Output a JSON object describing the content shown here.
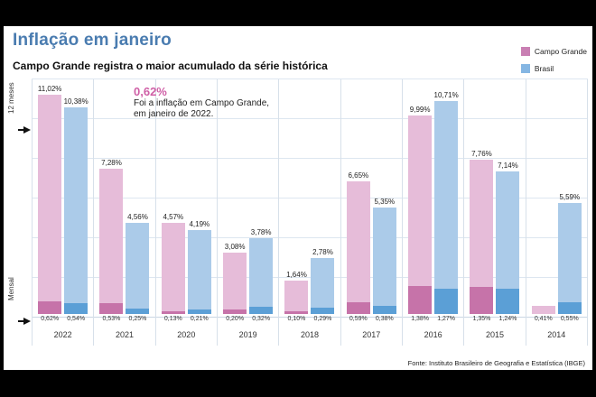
{
  "title": "Inflação em janeiro",
  "subtitle": "Campo Grande registra o maior acumulado da série histórica",
  "annotation": {
    "value": "0,62%",
    "line1": "Foi a inflação em Campo Grande,",
    "line2": "em janeiro de 2022.",
    "color": "#cf5fa6"
  },
  "axis": {
    "twelve_months_label": "12 meses",
    "monthly_label": "Mensal"
  },
  "footer": "Fonte: Instituto Brasileiro de Geografia e Estatística (IBGE)",
  "colors": {
    "title": "#4a7cb0",
    "grid": "#dde6f0"
  },
  "chart_data": {
    "type": "bar",
    "title": "Inflação em janeiro",
    "subtitle": "Campo Grande registra o maior acumulado da série histórica",
    "categories": [
      "2022",
      "2021",
      "2020",
      "2019",
      "2018",
      "2017",
      "2016",
      "2015",
      "2014"
    ],
    "legend_position": "top-right",
    "grid": true,
    "ylim": [
      0,
      11.8
    ],
    "units": "%",
    "series": [
      {
        "name": "Campo Grande",
        "annual_12m": [
          11.02,
          7.28,
          4.57,
          3.08,
          1.64,
          6.65,
          9.99,
          7.76,
          null
        ],
        "annual_12m_labels": [
          "11,02%",
          "7,28%",
          "4,57%",
          "3,08%",
          "1,64%",
          "6,65%",
          "9,99%",
          "7,76%",
          ""
        ],
        "monthly": [
          0.62,
          0.53,
          0.13,
          0.2,
          0.1,
          0.59,
          1.38,
          1.35,
          0.41
        ],
        "monthly_labels": [
          "0,62%",
          "0,53%",
          "0,13%",
          "0,20%",
          "0,10%",
          "0,59%",
          "1,38%",
          "1,35%",
          "0,41%"
        ],
        "color_light": "#e6bcd9",
        "color_dark": "#c673a9",
        "color_legend": "#c97fb3"
      },
      {
        "name": "Brasil",
        "annual_12m": [
          10.38,
          4.56,
          4.19,
          3.78,
          2.78,
          5.35,
          10.71,
          7.14,
          5.59
        ],
        "annual_12m_labels": [
          "10,38%",
          "4,56%",
          "4,19%",
          "3,78%",
          "2,78%",
          "5,35%",
          "10,71%",
          "7,14%",
          "5,59%"
        ],
        "monthly": [
          0.54,
          0.25,
          0.21,
          0.32,
          0.29,
          0.38,
          1.27,
          1.24,
          0.55
        ],
        "monthly_labels": [
          "0,54%",
          "0,25%",
          "0,21%",
          "0,32%",
          "0,29%",
          "0,38%",
          "1,27%",
          "1,24%",
          "0,55%"
        ],
        "color_light": "#abcbe9",
        "color_dark": "#5b9fd6",
        "color_legend": "#85b6e3"
      }
    ]
  }
}
